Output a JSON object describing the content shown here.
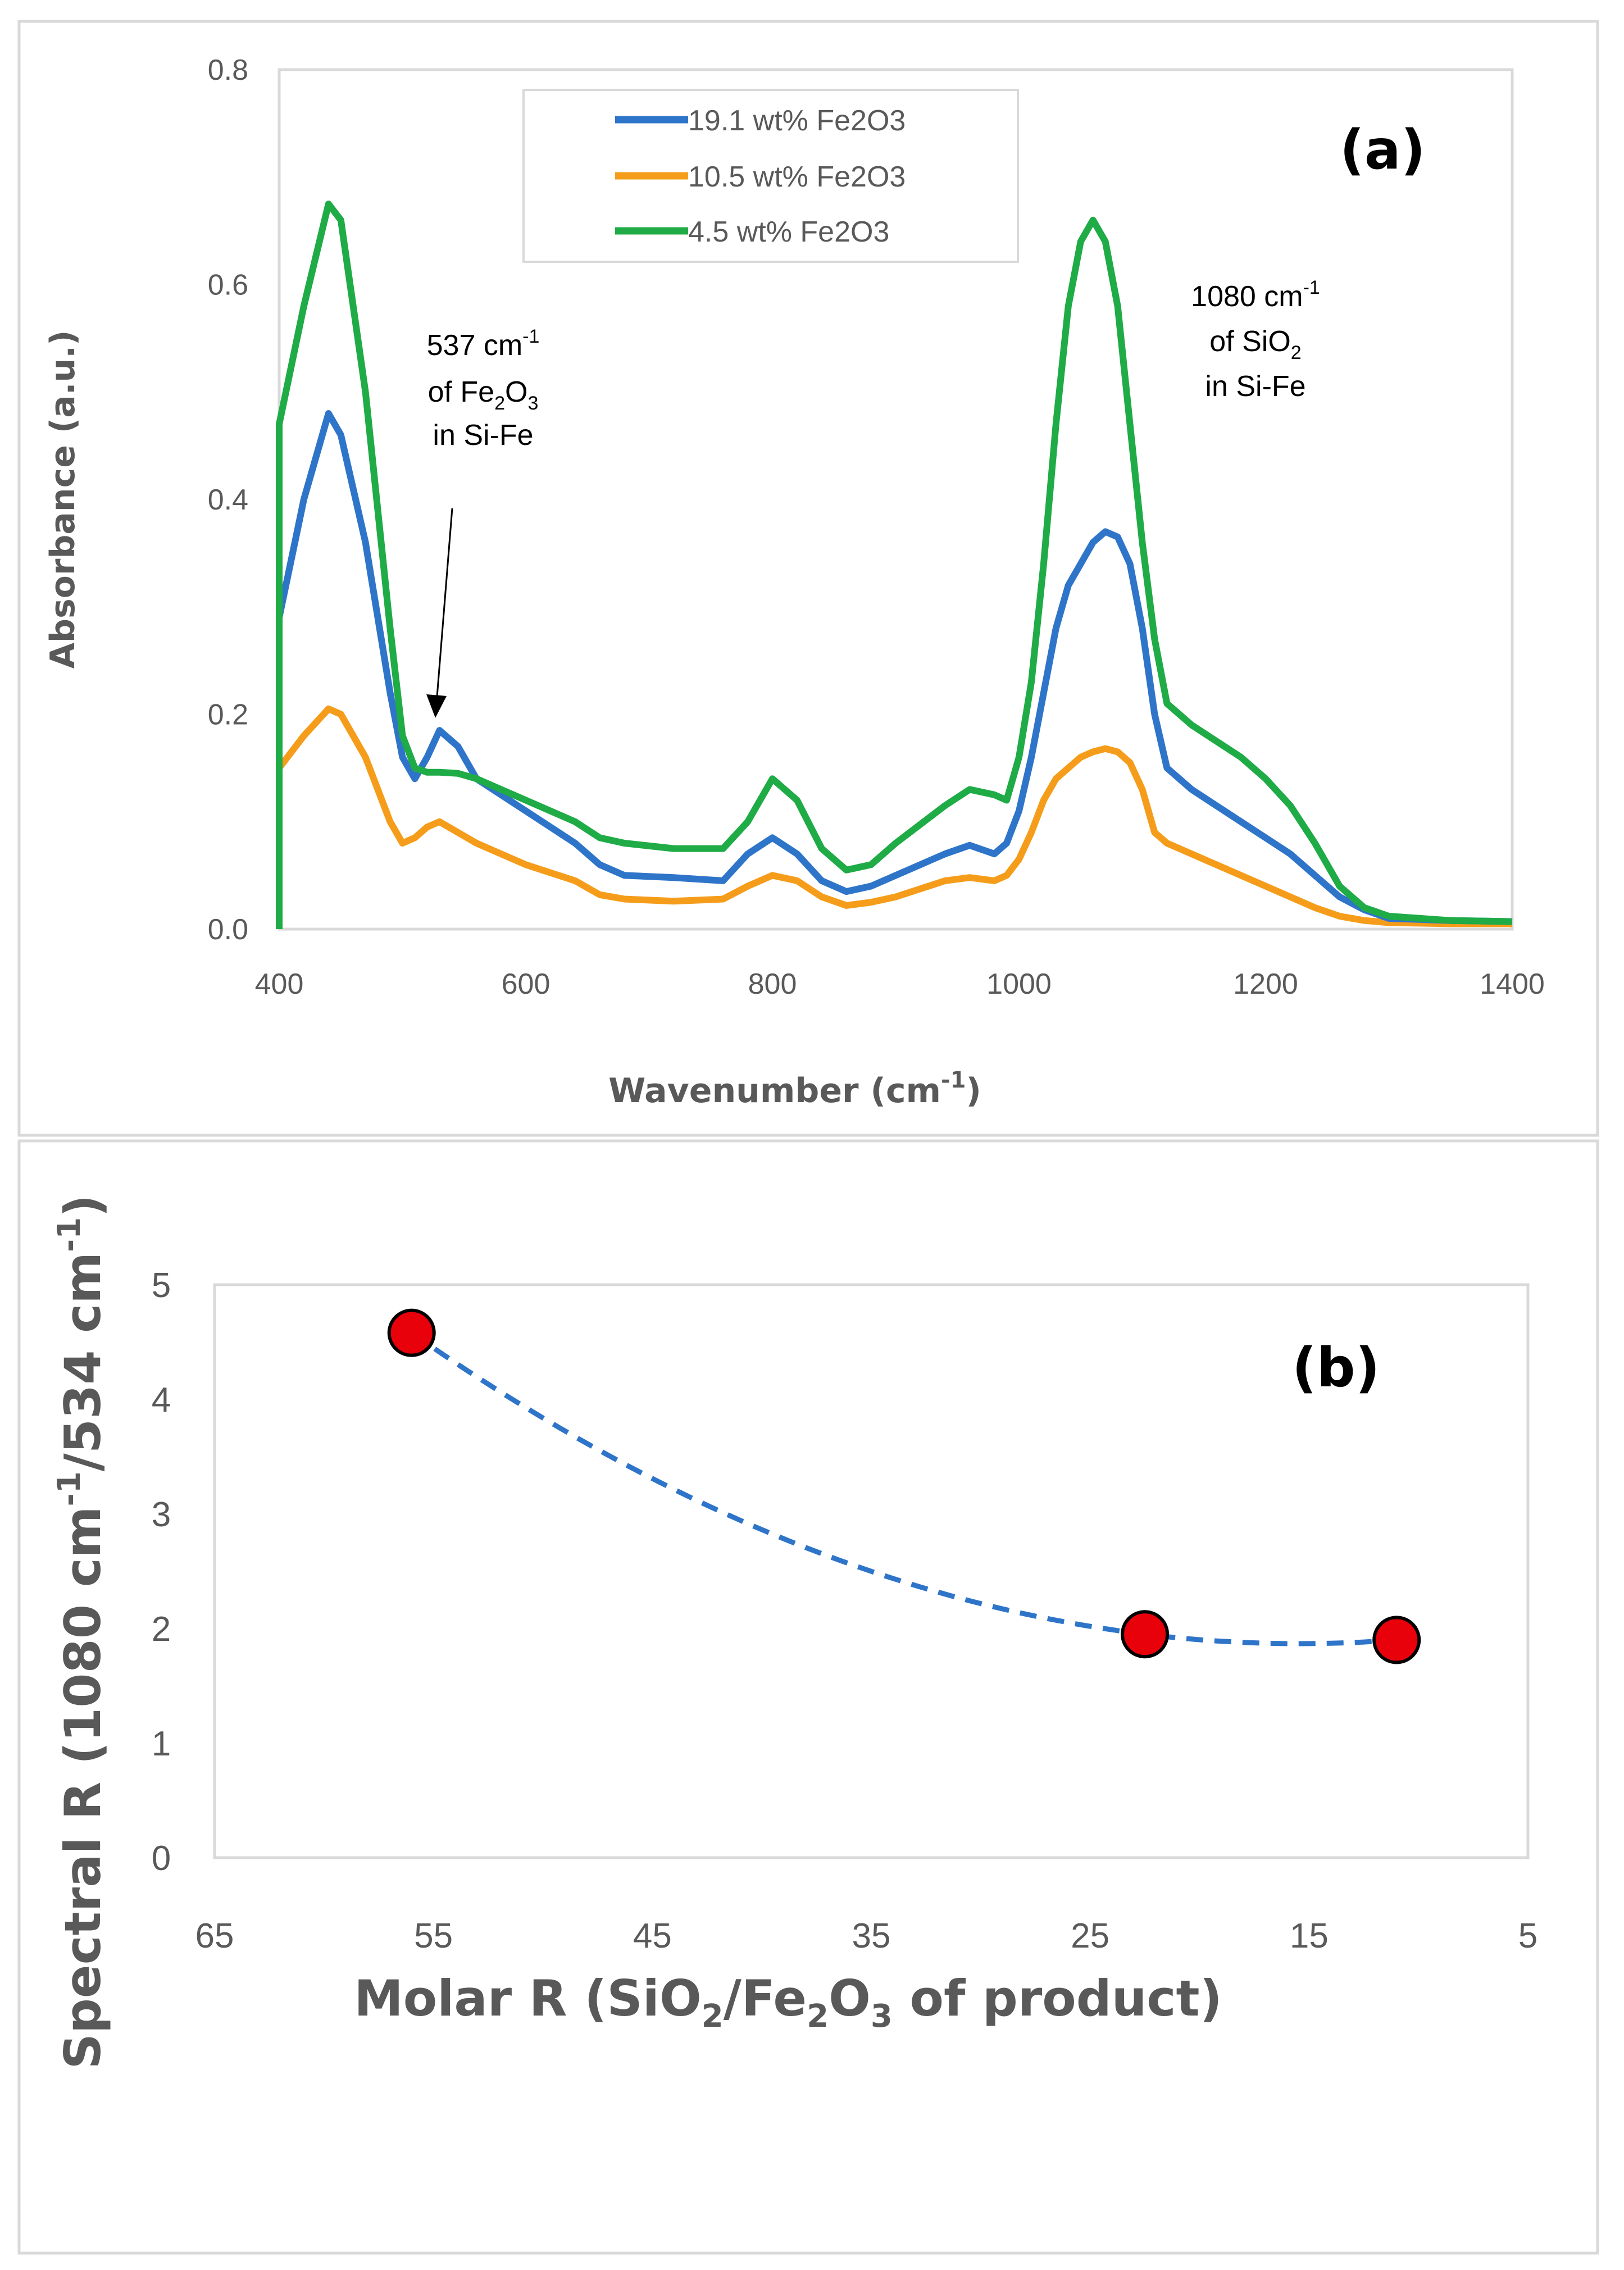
{
  "chart_data": [
    {
      "id": "a",
      "type": "line",
      "panel_label": "(a)",
      "title": "",
      "xlabel": "Wavenumber (cm",
      "xlabel_sup": "-1",
      "xlabel_close": ")",
      "ylabel": "Absorbance (a.u.)",
      "xlim": [
        400,
        1400
      ],
      "ylim": [
        0,
        0.8
      ],
      "x_ticks": [
        "400",
        "600",
        "800",
        "1000",
        "1200",
        "1400"
      ],
      "y_ticks": [
        "0.0",
        "0.2",
        "0.4",
        "0.6",
        "0.8"
      ],
      "grid": false,
      "legend_position": "top-center",
      "series": [
        {
          "name": "19.1 wt% Fe2O3",
          "color": "#2e75c9",
          "x": [
            400,
            420,
            440,
            450,
            470,
            490,
            500,
            510,
            520,
            530,
            545,
            560,
            600,
            640,
            660,
            680,
            720,
            760,
            780,
            800,
            820,
            840,
            860,
            880,
            900,
            940,
            960,
            980,
            990,
            1000,
            1010,
            1020,
            1030,
            1040,
            1050,
            1060,
            1070,
            1080,
            1090,
            1100,
            1110,
            1120,
            1140,
            1160,
            1180,
            1200,
            1220,
            1240,
            1260,
            1280,
            1300,
            1350,
            1400
          ],
          "values": [
            0.29,
            0.4,
            0.48,
            0.46,
            0.36,
            0.22,
            0.16,
            0.14,
            0.16,
            0.185,
            0.17,
            0.14,
            0.11,
            0.08,
            0.06,
            0.05,
            0.048,
            0.045,
            0.07,
            0.085,
            0.07,
            0.045,
            0.035,
            0.04,
            0.05,
            0.07,
            0.078,
            0.07,
            0.08,
            0.11,
            0.16,
            0.22,
            0.28,
            0.32,
            0.34,
            0.36,
            0.37,
            0.365,
            0.34,
            0.28,
            0.2,
            0.15,
            0.13,
            0.115,
            0.1,
            0.085,
            0.07,
            0.05,
            0.03,
            0.018,
            0.01,
            0.008,
            0.007
          ]
        },
        {
          "name": "10.5 wt% Fe2O3",
          "color": "#f59d1a",
          "x": [
            400,
            420,
            440,
            450,
            470,
            490,
            500,
            510,
            520,
            530,
            545,
            560,
            600,
            640,
            660,
            680,
            720,
            760,
            780,
            800,
            820,
            840,
            860,
            880,
            900,
            940,
            960,
            980,
            990,
            1000,
            1010,
            1020,
            1030,
            1040,
            1050,
            1060,
            1070,
            1080,
            1090,
            1100,
            1110,
            1120,
            1140,
            1160,
            1180,
            1200,
            1220,
            1240,
            1260,
            1280,
            1300,
            1350,
            1400
          ],
          "values": [
            0.15,
            0.18,
            0.205,
            0.2,
            0.16,
            0.1,
            0.08,
            0.085,
            0.095,
            0.1,
            0.09,
            0.08,
            0.06,
            0.045,
            0.032,
            0.028,
            0.026,
            0.028,
            0.04,
            0.05,
            0.045,
            0.03,
            0.022,
            0.025,
            0.03,
            0.045,
            0.048,
            0.045,
            0.05,
            0.065,
            0.09,
            0.12,
            0.14,
            0.15,
            0.16,
            0.165,
            0.168,
            0.165,
            0.155,
            0.13,
            0.09,
            0.08,
            0.07,
            0.06,
            0.05,
            0.04,
            0.03,
            0.02,
            0.012,
            0.008,
            0.006,
            0.005,
            0.005
          ]
        },
        {
          "name": "4.5 wt% Fe2O3",
          "color": "#1fab46",
          "x": [
            400,
            420,
            440,
            450,
            470,
            490,
            500,
            510,
            520,
            530,
            545,
            560,
            600,
            640,
            660,
            680,
            720,
            760,
            780,
            800,
            820,
            840,
            860,
            880,
            900,
            940,
            960,
            980,
            990,
            1000,
            1010,
            1020,
            1030,
            1040,
            1050,
            1060,
            1070,
            1080,
            1090,
            1100,
            1110,
            1120,
            1140,
            1160,
            1180,
            1200,
            1220,
            1240,
            1260,
            1280,
            1300,
            1350,
            1400
          ],
          "values": [
            0.47,
            0.58,
            0.675,
            0.66,
            0.5,
            0.28,
            0.18,
            0.15,
            0.146,
            0.146,
            0.145,
            0.14,
            0.12,
            0.1,
            0.085,
            0.08,
            0.075,
            0.075,
            0.1,
            0.14,
            0.12,
            0.075,
            0.055,
            0.06,
            0.08,
            0.115,
            0.13,
            0.125,
            0.12,
            0.16,
            0.23,
            0.34,
            0.47,
            0.58,
            0.64,
            0.66,
            0.64,
            0.58,
            0.47,
            0.36,
            0.27,
            0.21,
            0.19,
            0.175,
            0.16,
            0.14,
            0.115,
            0.08,
            0.04,
            0.02,
            0.012,
            0.008,
            0.007
          ]
        }
      ],
      "annotations": [
        {
          "lines": [
            "537 cm",
            "of Fe",
            "in Si-Fe"
          ],
          "sup1": "-1",
          "sub2a": "2",
          "mid2": "O",
          "sub2b": "3",
          "x": 537,
          "y": 0.185
        },
        {
          "lines": [
            "1080 cm",
            "of SiO",
            "in Si-Fe"
          ],
          "sup1": "-1",
          "sub2": "2",
          "x": 1080
        }
      ]
    },
    {
      "id": "b",
      "type": "scatter",
      "panel_label": "(b)",
      "title": "",
      "xlabel": "Molar R (SiO",
      "xlabel_sub1": "2",
      "xlabel_mid": "/Fe",
      "xlabel_sub2": "2",
      "xlabel_mid2": "O",
      "xlabel_sub3": "3",
      "xlabel_end": " of product)",
      "ylabel": "Spectral R (1080 cm",
      "ylabel_sup1": "-1",
      "ylabel_mid": "/534 cm",
      "ylabel_sup2": "-1",
      "ylabel_end": ")",
      "xlim": [
        65,
        5
      ],
      "ylim": [
        0,
        5
      ],
      "x_ticks": [
        "65",
        "55",
        "45",
        "35",
        "25",
        "15",
        "5"
      ],
      "y_ticks": [
        "0",
        "1",
        "2",
        "3",
        "4",
        "5"
      ],
      "grid": false,
      "x": [
        56,
        22.5,
        11
      ],
      "values": [
        4.58,
        1.95,
        1.9
      ],
      "trendline": {
        "type": "polynomial",
        "order": 2,
        "color": "#2e75c9",
        "style": "dashed"
      },
      "marker_color": "#e8000b"
    }
  ]
}
